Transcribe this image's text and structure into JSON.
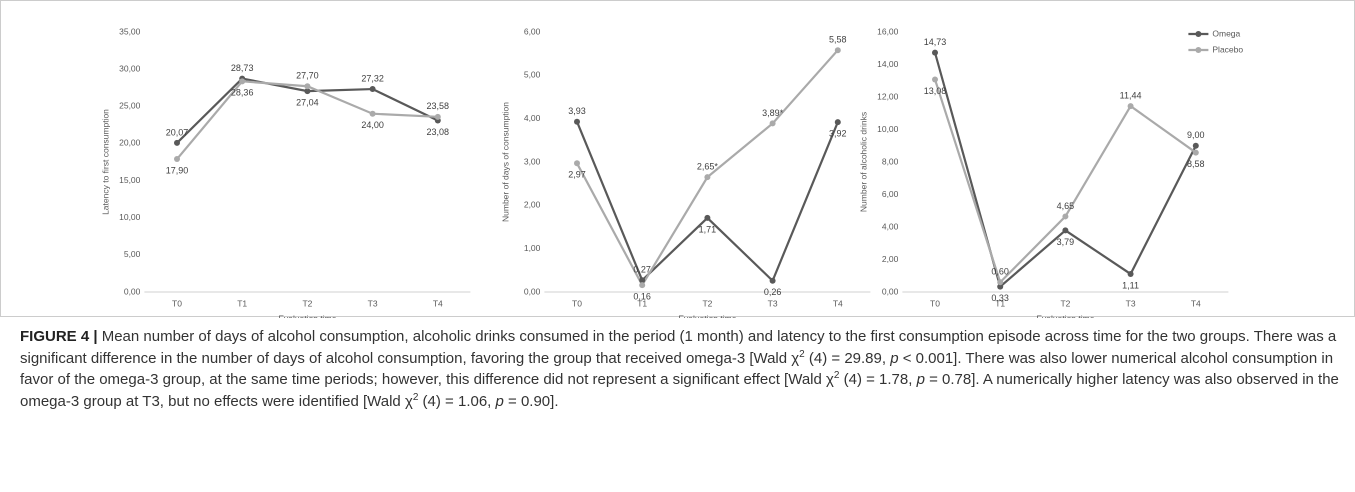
{
  "chart_data": [
    {
      "type": "line",
      "ylabel": "Latency to first consumption",
      "xlabel": "Evaluation time",
      "categories": [
        "T0",
        "T1",
        "T2",
        "T3",
        "T4"
      ],
      "ylim": [
        0,
        35
      ],
      "yticks": [
        {
          "value": 0,
          "label": "0,00"
        },
        {
          "value": 5,
          "label": "5,00"
        },
        {
          "value": 10,
          "label": "10,00"
        },
        {
          "value": 15,
          "label": "15,00"
        },
        {
          "value": 20,
          "label": "20,00"
        },
        {
          "value": 25,
          "label": "25,00"
        },
        {
          "value": 30,
          "label": "30,00"
        },
        {
          "value": 35,
          "label": "35,00"
        }
      ],
      "grid": false,
      "series": [
        {
          "name": "Omega",
          "color": "#595959",
          "values": [
            20.07,
            28.73,
            27.04,
            27.32,
            23.08
          ],
          "value_labels": [
            "20,07",
            "28,73",
            "27,04",
            "27,32",
            "23,08"
          ]
        },
        {
          "name": "Placebo",
          "color": "#aaaaaa",
          "values": [
            17.9,
            28.36,
            27.7,
            24.0,
            23.58
          ],
          "value_labels": [
            "17,90",
            "28,36",
            "27,70",
            "24,00",
            "23,58"
          ]
        }
      ]
    },
    {
      "type": "line",
      "ylabel": "Number of days of consumption",
      "xlabel": "Evaluation time",
      "categories": [
        "T0",
        "T1",
        "T2",
        "T3",
        "T4"
      ],
      "ylim": [
        0,
        6
      ],
      "yticks": [
        {
          "value": 0,
          "label": "0,00"
        },
        {
          "value": 1,
          "label": "1,00"
        },
        {
          "value": 2,
          "label": "2,00"
        },
        {
          "value": 3,
          "label": "3,00"
        },
        {
          "value": 4,
          "label": "4,00"
        },
        {
          "value": 5,
          "label": "5,00"
        },
        {
          "value": 6,
          "label": "6,00"
        }
      ],
      "grid": false,
      "series": [
        {
          "name": "Omega",
          "color": "#595959",
          "values": [
            3.93,
            0.27,
            1.71,
            0.26,
            3.92
          ],
          "value_labels": [
            "3,93",
            "0,27",
            "1,71",
            "0,26",
            "3,92"
          ]
        },
        {
          "name": "Placebo",
          "color": "#aaaaaa",
          "values": [
            2.97,
            0.16,
            2.65,
            3.89,
            5.58
          ],
          "value_labels": [
            "2,97",
            "0,16",
            "2,65*",
            "3,89*",
            "5,58"
          ]
        }
      ]
    },
    {
      "type": "line",
      "ylabel": "Number of alcoholic drinks",
      "xlabel": "Evaluation time",
      "categories": [
        "T0",
        "T1",
        "T2",
        "T3",
        "T4"
      ],
      "ylim": [
        0,
        16
      ],
      "yticks": [
        {
          "value": 0,
          "label": "0,00"
        },
        {
          "value": 2,
          "label": "2,00"
        },
        {
          "value": 4,
          "label": "4,00"
        },
        {
          "value": 6,
          "label": "6,00"
        },
        {
          "value": 8,
          "label": "8,00"
        },
        {
          "value": 10,
          "label": "10,00"
        },
        {
          "value": 12,
          "label": "12,00"
        },
        {
          "value": 14,
          "label": "14,00"
        },
        {
          "value": 16,
          "label": "16,00"
        }
      ],
      "grid": false,
      "legend": "top-right",
      "series": [
        {
          "name": "Omega",
          "color": "#595959",
          "values": [
            14.73,
            0.33,
            3.79,
            1.11,
            9.0
          ],
          "value_labels": [
            "14,73",
            "0,33",
            "3,79",
            "1,11",
            "9,00"
          ]
        },
        {
          "name": "Placebo",
          "color": "#aaaaaa",
          "values": [
            13.08,
            0.6,
            4.65,
            11.44,
            8.58
          ],
          "value_labels": [
            "13,08",
            "0,60",
            "4,65",
            "11,44",
            "8,58"
          ]
        }
      ]
    }
  ],
  "caption": {
    "label": "FIGURE 4 |",
    "parts": [
      {
        "text": " Mean number of days of alcohol consumption, alcoholic drinks consumed in the period (1 month) and latency to the first consumption episode across time for the two groups. There was a significant difference in the number of days of alcohol consumption, favoring the group that received omega-3 [Wald χ",
        "format": "plain"
      },
      {
        "text": "2",
        "format": "sup"
      },
      {
        "text": " (4) = 29.89, ",
        "format": "plain"
      },
      {
        "text": "p",
        "format": "i"
      },
      {
        "text": " < 0.001]. There was also lower numerical alcohol consumption in favor of the omega-3 group, at the same time periods; however, this difference did not represent a significant effect [Wald χ",
        "format": "plain"
      },
      {
        "text": "2",
        "format": "sup"
      },
      {
        "text": " (4) = 1.78, ",
        "format": "plain"
      },
      {
        "text": "p",
        "format": "i"
      },
      {
        "text": " = 0.78]. A numerically higher latency was also observed in the omega-3 group at T3, but no effects were identified [Wald χ",
        "format": "plain"
      },
      {
        "text": "2",
        "format": "sup"
      },
      {
        "text": " (4) = 1.06, ",
        "format": "plain"
      },
      {
        "text": "p",
        "format": "i"
      },
      {
        "text": " = 0.90].",
        "format": "plain"
      }
    ]
  }
}
